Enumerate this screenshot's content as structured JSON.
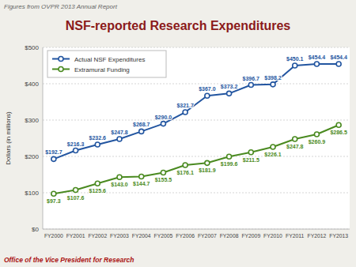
{
  "chart_data": {
    "type": "line",
    "title": "NSF-reported Research Expenditures",
    "annotations": [
      "Figures from OVPR 2013 Annual Report",
      "Office of the Vice President for Research"
    ],
    "ylabel": "Dollars (in millions)",
    "categories": [
      "FY2000",
      "FY2001",
      "FY2002",
      "FY2003",
      "FY2004",
      "FY2005",
      "FY2006",
      "FY2007",
      "FY2008",
      "FY2009",
      "FY2010",
      "FY2011",
      "FY2012",
      "FY2013"
    ],
    "series": [
      {
        "name": "Actual NSF Expenditures",
        "color": "#2255A0",
        "values": [
          192.7,
          216.3,
          232.6,
          247.8,
          268.7,
          290.0,
          321.7,
          367.0,
          373.2,
          396.7,
          398.2,
          450.1,
          454.4,
          454.4
        ],
        "value_labels": [
          "$192.7",
          "$216.3",
          "$232.6",
          "$247.8",
          "$268.7",
          "$290.0",
          "$321.7",
          "$367.0",
          "$373.2",
          "$396.7",
          "$398.2",
          "$450.1",
          "$454.4",
          "$454.4"
        ]
      },
      {
        "name": "Extramural Funding",
        "color": "#4A8A20",
        "values": [
          97.3,
          107.6,
          125.6,
          143.0,
          144.7,
          155.5,
          176.1,
          181.9,
          199.6,
          211.5,
          226.1,
          247.8,
          260.9,
          286.5
        ],
        "value_labels": [
          "$97.3",
          "$107.6",
          "$125.6",
          "$143.0",
          "$144.7",
          "$155.5",
          "$176.1",
          "$181.9",
          "$199.6",
          "$211.5",
          "$226.1",
          "$247.8",
          "$260.9",
          "$286.5"
        ]
      }
    ],
    "ylim": [
      0,
      500
    ],
    "yticks": [
      {
        "value": 0,
        "label": "$0"
      },
      {
        "value": 100,
        "label": "$100"
      },
      {
        "value": 200,
        "label": "$200"
      },
      {
        "value": 300,
        "label": "$300"
      },
      {
        "value": 400,
        "label": "$400"
      },
      {
        "value": 500,
        "label": "$500"
      }
    ],
    "grid": true,
    "legend": "upper left",
    "data_labels": true,
    "marker": "circle",
    "line_style": "solid"
  }
}
